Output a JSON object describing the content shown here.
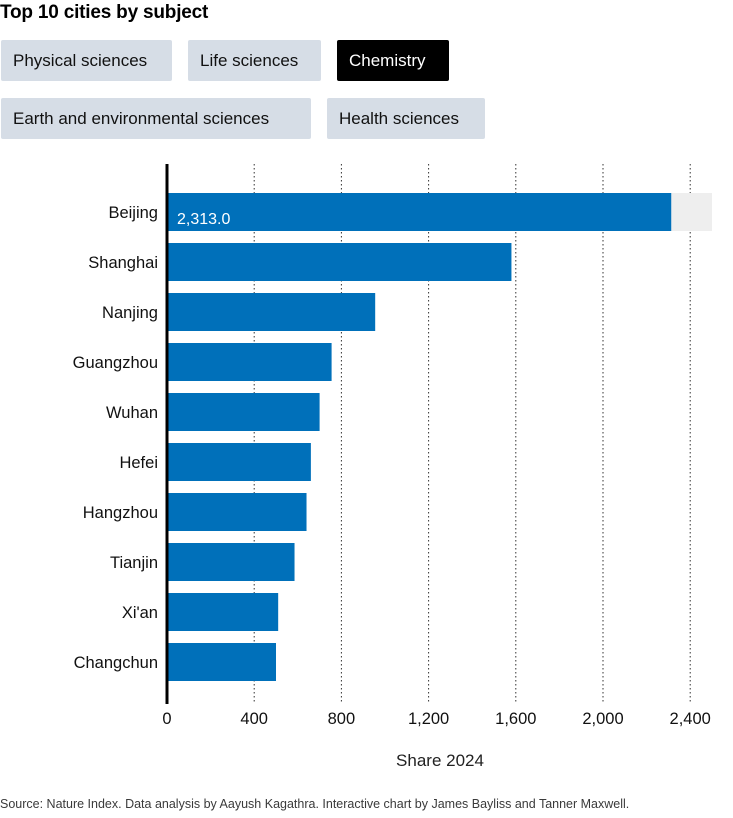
{
  "title": "Top 10 cities by subject",
  "tabs": [
    {
      "label": "Physical sciences",
      "active": false
    },
    {
      "label": "Life sciences",
      "active": false
    },
    {
      "label": "Chemistry",
      "active": true
    },
    {
      "label": "Earth and environmental sciences",
      "active": false
    },
    {
      "label": "Health sciences",
      "active": false
    }
  ],
  "colors": {
    "bar": "#0070ba",
    "highlight_bg": "#eeeeee",
    "active_tab": "#000000",
    "tab": "#d6dde6"
  },
  "chart_data": {
    "type": "bar",
    "orientation": "horizontal",
    "categories": [
      "Beijing",
      "Shanghai",
      "Nanjing",
      "Guangzhou",
      "Wuhan",
      "Hefei",
      "Hangzhou",
      "Tianjin",
      "Xi'an",
      "Changchun"
    ],
    "values": [
      2313.0,
      1580,
      955,
      755,
      700,
      660,
      640,
      585,
      510,
      500
    ],
    "highlight": {
      "category": "Beijing",
      "label": "2,313.0"
    },
    "xlabel": "Share 2024",
    "xlim": [
      0,
      2500
    ],
    "xticks": [
      0,
      400,
      800,
      1200,
      1600,
      2000,
      2400
    ],
    "xtick_labels": [
      "0",
      "400",
      "800",
      "1,200",
      "1,600",
      "2,000",
      "2,400"
    ],
    "grid": "vertical dotted"
  },
  "source": "Source: Nature Index. Data analysis by Aayush Kagathra. Interactive chart by James Bayliss and Tanner Maxwell."
}
